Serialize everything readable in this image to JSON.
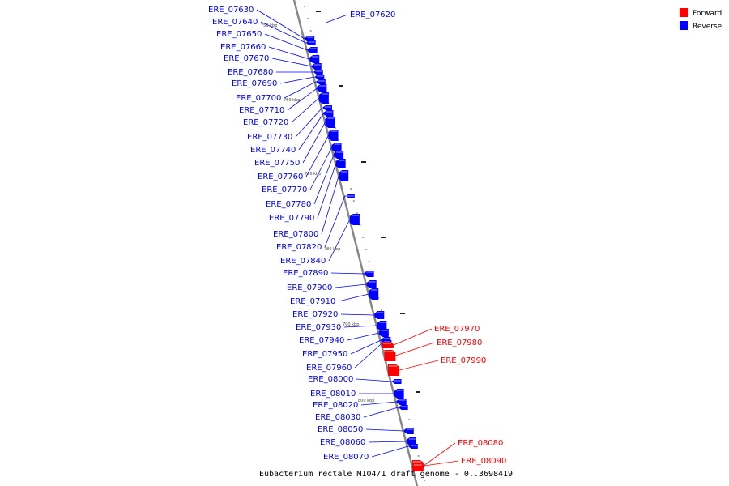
{
  "colors": {
    "forward": "#ff0000",
    "reverse": "#0000ff",
    "axis": "#888888"
  },
  "legend": [
    {
      "name": "Forward",
      "color": "#ff0000"
    },
    {
      "name": "Reverse",
      "color": "#0000ff"
    }
  ],
  "title": "Eubacterium rectale M104/1 draft genome - 0..3698419",
  "ticks": [
    "750 kbp",
    "760 kbp",
    "770 kbp",
    "780 kbp",
    "790 kbp",
    "800 kbp"
  ],
  "genes": [
    {
      "id": "ERE_07620",
      "strand": "reverse"
    },
    {
      "id": "ERE_07630",
      "strand": "reverse"
    },
    {
      "id": "ERE_07640",
      "strand": "reverse"
    },
    {
      "id": "ERE_07650",
      "strand": "reverse"
    },
    {
      "id": "ERE_07660",
      "strand": "reverse"
    },
    {
      "id": "ERE_07670",
      "strand": "reverse"
    },
    {
      "id": "ERE_07680",
      "strand": "reverse"
    },
    {
      "id": "ERE_07690",
      "strand": "reverse"
    },
    {
      "id": "ERE_07700",
      "strand": "reverse"
    },
    {
      "id": "ERE_07710",
      "strand": "reverse"
    },
    {
      "id": "ERE_07720",
      "strand": "reverse"
    },
    {
      "id": "ERE_07730",
      "strand": "reverse"
    },
    {
      "id": "ERE_07740",
      "strand": "reverse"
    },
    {
      "id": "ERE_07750",
      "strand": "reverse"
    },
    {
      "id": "ERE_07760",
      "strand": "reverse"
    },
    {
      "id": "ERE_07770",
      "strand": "reverse"
    },
    {
      "id": "ERE_07780",
      "strand": "reverse"
    },
    {
      "id": "ERE_07790",
      "strand": "reverse"
    },
    {
      "id": "ERE_07800",
      "strand": "reverse"
    },
    {
      "id": "ERE_07820",
      "strand": "reverse"
    },
    {
      "id": "ERE_07840",
      "strand": "reverse"
    },
    {
      "id": "ERE_07890",
      "strand": "reverse"
    },
    {
      "id": "ERE_07900",
      "strand": "reverse"
    },
    {
      "id": "ERE_07910",
      "strand": "reverse"
    },
    {
      "id": "ERE_07920",
      "strand": "reverse"
    },
    {
      "id": "ERE_07930",
      "strand": "reverse"
    },
    {
      "id": "ERE_07940",
      "strand": "reverse"
    },
    {
      "id": "ERE_07950",
      "strand": "reverse"
    },
    {
      "id": "ERE_07960",
      "strand": "reverse"
    },
    {
      "id": "ERE_07970",
      "strand": "forward"
    },
    {
      "id": "ERE_07980",
      "strand": "forward"
    },
    {
      "id": "ERE_07990",
      "strand": "forward"
    },
    {
      "id": "ERE_08000",
      "strand": "reverse"
    },
    {
      "id": "ERE_08010",
      "strand": "reverse"
    },
    {
      "id": "ERE_08020",
      "strand": "reverse"
    },
    {
      "id": "ERE_08030",
      "strand": "reverse"
    },
    {
      "id": "ERE_08050",
      "strand": "reverse"
    },
    {
      "id": "ERE_08060",
      "strand": "reverse"
    },
    {
      "id": "ERE_08070",
      "strand": "reverse"
    },
    {
      "id": "ERE_08080",
      "strand": "forward"
    },
    {
      "id": "ERE_08090",
      "strand": "forward"
    }
  ]
}
